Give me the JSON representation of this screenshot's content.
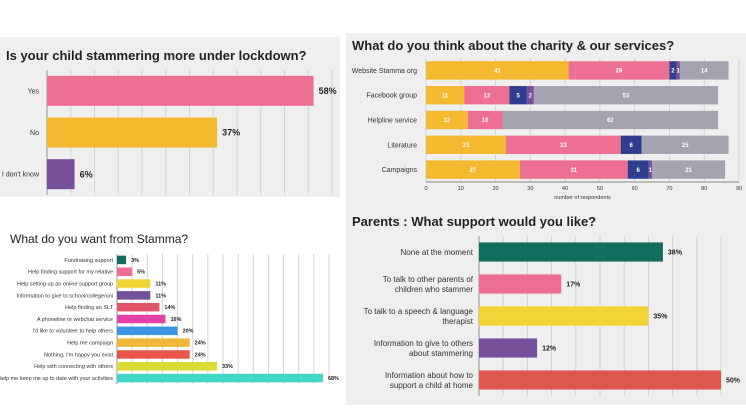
{
  "colors": {
    "pink": "#ed6f93",
    "yellow": "#f3b92f",
    "purple": "#76509b",
    "navy": "#2e3d8e",
    "grey": "#a4a3af",
    "teal_dark": "#126e5c",
    "teal_bright": "#3fd7c3",
    "blue": "#3a96e4",
    "green_yellow": "#dcdb33",
    "orange": "#f0b63a",
    "red_orange": "#e6574a",
    "crimson": "#e3566a",
    "magenta": "#e441a8",
    "salmon_red": "#dd5950",
    "gold": "#f2d436",
    "background_grey": "#efefef"
  },
  "chart_data": [
    {
      "id": "lockdown",
      "type": "bar",
      "orientation": "horizontal",
      "title": "Is your child stammering more under lockdown?",
      "categories": [
        "Yes",
        "No",
        "I don't know"
      ],
      "values": [
        58,
        37,
        6
      ],
      "value_labels": [
        "58%",
        "37%",
        "6%"
      ],
      "colors": [
        "#ed6f93",
        "#f3b92f",
        "#76509b"
      ],
      "xlim": [
        0,
        62
      ],
      "grid": true
    },
    {
      "id": "charity",
      "type": "bar",
      "orientation": "horizontal",
      "stacked": true,
      "title": "What do you think about the charity & our services?",
      "categories": [
        "Website Stamma org",
        "Facebook group",
        "Helpline service",
        "Literature",
        "Campaigns"
      ],
      "series": [
        {
          "values": [
            41,
            11,
            12,
            23,
            27
          ],
          "color": "#f3b92f"
        },
        {
          "values": [
            29,
            13,
            10,
            33,
            31
          ],
          "color": "#ed6f93"
        },
        {
          "values": [
            2,
            5,
            0,
            6,
            6
          ],
          "color": "#2e3d8e"
        },
        {
          "values": [
            1,
            2,
            0,
            0,
            1
          ],
          "color": "#76509b"
        },
        {
          "values": [
            14,
            53,
            62,
            25,
            21
          ],
          "color": "#a4a3af"
        }
      ],
      "xlim": [
        0,
        90
      ],
      "xticks": [
        "0",
        "10",
        "20",
        "30",
        "40",
        "50",
        "60",
        "70",
        "80",
        "90"
      ],
      "xlabel": "number of respondents",
      "grid": true
    },
    {
      "id": "want",
      "type": "bar",
      "orientation": "horizontal",
      "title": "What do you want from Stamma?",
      "categories": [
        "Fundraising support",
        "Help finding support for my relative",
        "Help setting up an online support group",
        "Information to give to school/college/uni",
        "Help finding an SLT",
        "A phoneline or webchat service",
        "I'd like to volunteer to help others",
        "Help me campaign",
        "Nothing, I'm happy you exist",
        "Help with connecting with others",
        "Help me keep me up to date with your activities"
      ],
      "values": [
        3,
        5,
        11,
        11,
        14,
        16,
        20,
        24,
        24,
        33,
        68
      ],
      "value_labels": [
        "3%",
        "5%",
        "11%",
        "11%",
        "14%",
        "16%",
        "20%",
        "24%",
        "24%",
        "33%",
        "68%"
      ],
      "colors": [
        "#126e5c",
        "#ed6f93",
        "#f3d436",
        "#76509b",
        "#e3566a",
        "#e441a8",
        "#3a96e4",
        "#f0b63a",
        "#e6574a",
        "#dcdb33",
        "#3fd7c3"
      ],
      "xlim": [
        0,
        70
      ],
      "grid": true
    },
    {
      "id": "parents",
      "type": "bar",
      "orientation": "horizontal",
      "title": "Parents : What support would you like?",
      "categories": [
        "None at the moment",
        "To talk to other parents of\nchildren who stammer",
        "To talk to a speech & language\ntherapist",
        "Information to give to others\nabout stammering",
        "Information about how to\nsupport a child at home"
      ],
      "values": [
        38,
        17,
        35,
        12,
        50
      ],
      "value_labels": [
        "38%",
        "17%",
        "35%",
        "12%",
        "50%"
      ],
      "colors": [
        "#126e5c",
        "#ed6f93",
        "#f2d436",
        "#76509b",
        "#dd5950"
      ],
      "xlim": [
        0,
        50
      ],
      "grid": true
    }
  ]
}
